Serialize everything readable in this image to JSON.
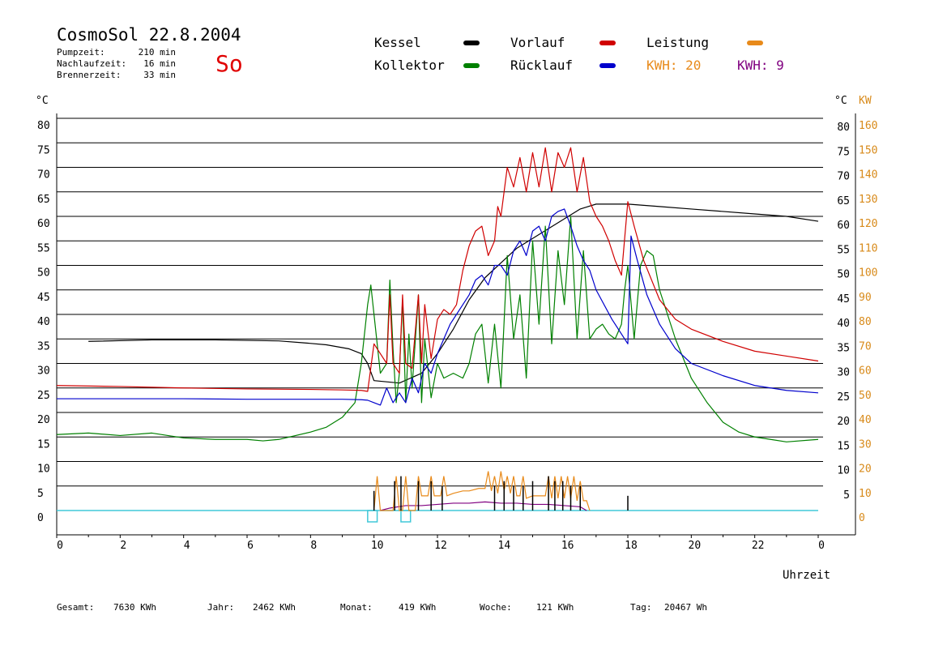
{
  "header": {
    "title": "CosmoSol 22.8.2004",
    "day": "So",
    "info": [
      {
        "label": "Pumpzeit:",
        "value": "210 min"
      },
      {
        "label": "Nachlaufzeit:",
        "value": "16 min"
      },
      {
        "label": "Brennerzeit:",
        "value": "33 min"
      }
    ]
  },
  "legend": {
    "kessel": "Kessel",
    "kollektor": "Kollektor",
    "vorlauf": "Vorlauf",
    "ruecklauf": "Rücklauf",
    "leistung": "Leistung",
    "kwh1": "KWH: 20",
    "kwh2": "KWH: 9"
  },
  "colors": {
    "kessel": "#000000",
    "kollektor": "#008000",
    "vorlauf": "#d00000",
    "ruecklauf": "#0000cc",
    "leistung": "#e88a1a",
    "kwh2": "#800080",
    "pump": "#40c8d8",
    "title_day": "#e00000",
    "axis_kw": "#d88a1a"
  },
  "footer": {
    "items": [
      {
        "label": "Gesamt:",
        "value": "7630 KWh"
      },
      {
        "label": "Jahr:",
        "value": "2462 KWh"
      },
      {
        "label": "Monat:",
        "value": "419 KWh"
      },
      {
        "label": "Woche:",
        "value": "121 KWh"
      },
      {
        "label": "Tag:",
        "value": "20467 Wh"
      }
    ]
  },
  "chart_data": {
    "type": "line",
    "xlabel": "Uhrzeit",
    "ylabel_left": "°C",
    "ylabel_right": "°C",
    "ylabel_right2": "KW",
    "xlim": [
      0,
      24
    ],
    "ylim": [
      0,
      80
    ],
    "ylim_right2": [
      0,
      160
    ],
    "x_ticks": [
      "0",
      "2",
      "4",
      "6",
      "8",
      "10",
      "12",
      "14",
      "16",
      "18",
      "20",
      "22",
      "0"
    ],
    "y_ticks_left": [
      "0",
      "5",
      "10",
      "15",
      "20",
      "25",
      "30",
      "35",
      "40",
      "45",
      "50",
      "55",
      "60",
      "65",
      "70",
      "75",
      "80"
    ],
    "y_ticks_right": [
      "",
      "5",
      "10",
      "15",
      "20",
      "25",
      "30",
      "35",
      "40",
      "45",
      "50",
      "55",
      "60",
      "65",
      "70",
      "75",
      "80"
    ],
    "y_ticks_right2": [
      "0",
      "10",
      "20",
      "30",
      "40",
      "50",
      "60",
      "70",
      "80",
      "90",
      "100",
      "110",
      "120",
      "130",
      "140",
      "150",
      "160"
    ],
    "series": [
      {
        "name": "Kessel",
        "key": "kessel",
        "x": [
          1.0,
          3.0,
          5.0,
          7.0,
          7.8,
          8.5,
          9.2,
          9.6,
          9.8,
          10.0,
          10.8,
          11.5,
          12.0,
          12.5,
          13.0,
          13.5,
          14.0,
          14.5,
          15.0,
          15.5,
          16.0,
          16.5,
          17.0,
          18.0,
          19.0,
          20.0,
          21.0,
          22.0,
          23.0,
          24.0
        ],
        "y": [
          34.5,
          34.8,
          34.8,
          34.6,
          34.2,
          33.8,
          33.0,
          32.0,
          30.0,
          26.5,
          26.0,
          28.0,
          32.0,
          37.0,
          43.0,
          47.5,
          50.5,
          53.5,
          55.5,
          57.5,
          59.5,
          61.5,
          62.5,
          62.5,
          62.0,
          61.5,
          61.0,
          60.5,
          60.0,
          59.0
        ]
      },
      {
        "name": "Kollektor",
        "key": "kollektor",
        "x": [
          0,
          1,
          2,
          3,
          4,
          5,
          6,
          6.5,
          7,
          8,
          8.5,
          9,
          9.4,
          9.6,
          9.8,
          9.9,
          10.0,
          10.2,
          10.4,
          10.5,
          10.6,
          10.7,
          10.8,
          10.9,
          11.0,
          11.1,
          11.2,
          11.4,
          11.5,
          11.6,
          11.8,
          12.0,
          12.2,
          12.5,
          12.8,
          13.0,
          13.2,
          13.4,
          13.6,
          13.8,
          14.0,
          14.2,
          14.4,
          14.6,
          14.8,
          15.0,
          15.2,
          15.4,
          15.6,
          15.8,
          16.0,
          16.2,
          16.4,
          16.6,
          16.8,
          17.0,
          17.2,
          17.4,
          17.6,
          17.8,
          17.9,
          18.0,
          18.2,
          18.4,
          18.6,
          18.8,
          19.0,
          19.5,
          20.0,
          20.5,
          21.0,
          21.5,
          22.0,
          22.5,
          23.0,
          24.0
        ],
        "y": [
          15.5,
          15.8,
          15.3,
          15.8,
          14.8,
          14.5,
          14.5,
          14.2,
          14.5,
          16.0,
          17.0,
          19.0,
          22.0,
          30.0,
          42.0,
          46.0,
          40.0,
          28.0,
          30.0,
          47.0,
          33.0,
          22.0,
          28.0,
          43.0,
          22.0,
          36.0,
          25.0,
          44.0,
          22.0,
          35.0,
          23.0,
          30.0,
          27.0,
          28.0,
          27.0,
          30.0,
          36.0,
          38.0,
          26.0,
          38.0,
          25.0,
          52.0,
          35.0,
          44.0,
          27.0,
          55.0,
          38.0,
          58.0,
          34.0,
          53.0,
          42.0,
          60.0,
          35.0,
          53.0,
          35.0,
          37.0,
          38.0,
          36.0,
          35.0,
          38.0,
          45.0,
          50.0,
          35.0,
          50.0,
          53.0,
          52.0,
          45.0,
          35.0,
          27.0,
          22.0,
          18.0,
          16.0,
          15.0,
          14.5,
          14.0,
          14.5
        ]
      },
      {
        "name": "Vorlauf",
        "key": "vorlauf",
        "x": [
          0,
          2,
          4,
          6,
          8,
          9,
          9.6,
          9.8,
          10.0,
          10.2,
          10.4,
          10.5,
          10.6,
          10.8,
          10.9,
          11.0,
          11.2,
          11.4,
          11.5,
          11.6,
          11.8,
          12.0,
          12.2,
          12.4,
          12.6,
          12.8,
          13.0,
          13.2,
          13.4,
          13.6,
          13.8,
          13.9,
          14.0,
          14.2,
          14.4,
          14.6,
          14.8,
          15.0,
          15.2,
          15.4,
          15.6,
          15.8,
          16.0,
          16.2,
          16.4,
          16.6,
          16.8,
          17.0,
          17.2,
          17.4,
          17.6,
          17.8,
          18.0,
          18.2,
          18.5,
          19.0,
          19.5,
          20.0,
          21.0,
          22.0,
          23.0,
          24.0
        ],
        "y": [
          25.5,
          25.3,
          25.0,
          24.8,
          24.7,
          24.6,
          24.5,
          24.3,
          34.0,
          32.0,
          30.0,
          44.0,
          30.0,
          28.0,
          44.0,
          30.0,
          29.0,
          44.0,
          30.0,
          42.0,
          31.0,
          39.0,
          41.0,
          40.0,
          42.0,
          49.0,
          54.0,
          57.0,
          58.0,
          52.0,
          55.0,
          62.0,
          60.0,
          70.0,
          66.0,
          72.0,
          65.0,
          73.0,
          66.0,
          74.0,
          65.0,
          73.0,
          70.0,
          74.0,
          65.0,
          72.0,
          63.0,
          60.0,
          58.0,
          55.0,
          51.0,
          48.0,
          63.0,
          58.0,
          51.0,
          43.0,
          39.0,
          37.0,
          34.5,
          32.5,
          31.5,
          30.5
        ]
      },
      {
        "name": "Rücklauf",
        "key": "ruecklauf",
        "x": [
          0,
          2,
          4,
          6,
          8,
          9,
          9.6,
          9.8,
          10.0,
          10.2,
          10.4,
          10.6,
          10.8,
          11.0,
          11.2,
          11.4,
          11.6,
          11.8,
          12.0,
          12.2,
          12.4,
          12.6,
          12.8,
          13.0,
          13.2,
          13.4,
          13.6,
          13.8,
          14.0,
          14.2,
          14.4,
          14.6,
          14.8,
          15.0,
          15.2,
          15.4,
          15.6,
          15.8,
          16.0,
          16.2,
          16.4,
          16.6,
          16.8,
          17.0,
          17.5,
          18.0,
          18.1,
          18.3,
          18.6,
          19.0,
          19.5,
          20.0,
          21.0,
          22.0,
          23.0,
          24.0
        ],
        "y": [
          22.8,
          22.8,
          22.8,
          22.7,
          22.7,
          22.7,
          22.6,
          22.5,
          22.0,
          21.5,
          25.0,
          22.0,
          24.0,
          22.0,
          27.0,
          24.0,
          30.0,
          28.0,
          32.0,
          35.0,
          38.0,
          40.0,
          42.0,
          44.0,
          47.0,
          48.0,
          46.0,
          50.0,
          50.0,
          48.0,
          53.0,
          55.0,
          52.0,
          57.0,
          58.0,
          55.0,
          60.0,
          61.0,
          61.5,
          58.0,
          54.0,
          51.0,
          49.0,
          45.0,
          39.0,
          34.0,
          56.0,
          51.0,
          44.0,
          38.0,
          33.0,
          30.0,
          27.5,
          25.5,
          24.5,
          24.0
        ]
      }
    ],
    "kw_series": {
      "name": "Leistung",
      "key": "leistung",
      "x": [
        10.0,
        10.1,
        10.2,
        10.6,
        10.7,
        10.8,
        10.9,
        11.0,
        11.1,
        11.3,
        11.4,
        11.5,
        11.7,
        11.8,
        11.9,
        12.1,
        12.2,
        12.3,
        12.5,
        12.8,
        13.0,
        13.3,
        13.5,
        13.6,
        13.7,
        13.8,
        13.9,
        14.0,
        14.1,
        14.2,
        14.3,
        14.4,
        14.5,
        14.6,
        14.7,
        14.8,
        15.0,
        15.2,
        15.4,
        15.5,
        15.6,
        15.7,
        15.8,
        15.9,
        16.0,
        16.1,
        16.2,
        16.3,
        16.4,
        16.5,
        16.6,
        16.7,
        16.8
      ],
      "y": [
        0,
        14,
        0,
        0,
        14,
        0,
        0,
        14,
        0,
        0,
        14,
        6,
        6,
        14,
        6,
        6,
        14,
        6,
        7,
        8,
        8,
        9,
        9,
        16,
        8,
        14,
        7,
        16,
        8,
        14,
        7,
        14,
        6,
        6,
        14,
        5,
        6,
        6,
        6,
        14,
        5,
        14,
        5,
        14,
        5,
        14,
        5,
        14,
        4,
        12,
        4,
        4,
        0
      ]
    },
    "kwh_series": {
      "name": "KWH: 9",
      "key": "kwh2",
      "x": [
        10.2,
        10.5,
        11.0,
        11.5,
        12.0,
        12.5,
        13.0,
        13.5,
        14.0,
        14.5,
        15.0,
        15.5,
        16.0,
        16.5,
        16.7
      ],
      "y": [
        0,
        1,
        2,
        2,
        2.5,
        3,
        3,
        3.5,
        3,
        3,
        2.5,
        2.5,
        2,
        1.5,
        0
      ]
    },
    "pump_markers": [
      {
        "x_start": 9.8,
        "x_end": 10.1
      },
      {
        "x_start": 10.85,
        "x_end": 11.15
      }
    ],
    "burner_spikes": {
      "x": [
        10.0,
        10.65,
        10.85,
        11.4,
        11.8,
        12.15,
        13.8,
        14.1,
        14.4,
        14.7,
        15.0,
        15.5,
        15.7,
        15.95,
        16.2,
        16.5,
        18.0
      ],
      "y": [
        4,
        6,
        7,
        6,
        6,
        5,
        5,
        6,
        5,
        5,
        6,
        7,
        6,
        6,
        5,
        5,
        3
      ]
    },
    "grid": true,
    "legend_position": "top"
  }
}
